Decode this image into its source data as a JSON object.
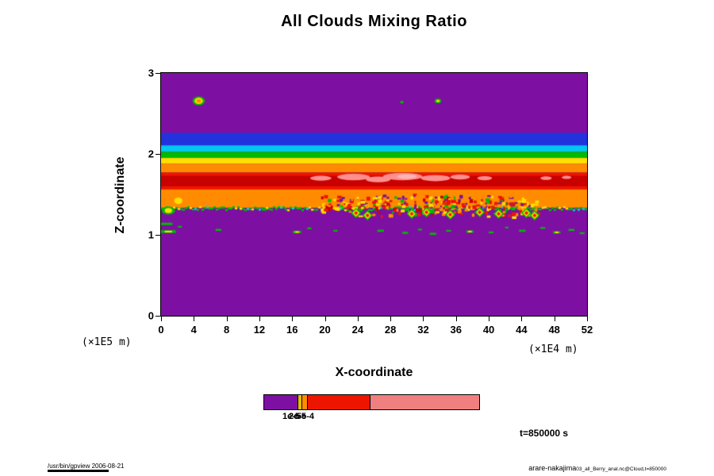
{
  "chart_data": {
    "type": "heatmap",
    "title": "All Clouds Mixing Ratio",
    "xlabel": "X-coordinate",
    "ylabel": "Z-coordinate",
    "x_units": "(×1E4 m)",
    "y_units": "(×1E5 m)",
    "xlim": [
      0,
      52
    ],
    "ylim": [
      0,
      3
    ],
    "x_ticks": [
      0,
      4,
      8,
      12,
      16,
      20,
      24,
      28,
      32,
      36,
      40,
      44,
      48,
      52
    ],
    "y_ticks": [
      0,
      1,
      2,
      3
    ],
    "time_label": "t=850000 s",
    "grid": false,
    "background_color": "#7d10a2",
    "bands": [
      {
        "name": "blue-layer",
        "color": "#2233dd",
        "z": [
          2.105,
          2.26
        ]
      },
      {
        "name": "cyan-layer",
        "color": "#00c8ee",
        "z": [
          2.025,
          2.105
        ]
      },
      {
        "name": "green-layer",
        "color": "#00bb00",
        "z": [
          1.95,
          2.025
        ]
      },
      {
        "name": "yellow-layer",
        "color": "#ffdf00",
        "z": [
          1.88,
          1.95
        ]
      },
      {
        "name": "orange-upper",
        "color": "#ff8c00",
        "z": [
          1.77,
          1.88
        ]
      },
      {
        "name": "red-layer",
        "color": "#ee1500",
        "z": [
          1.44,
          1.77
        ]
      },
      {
        "name": "darkred-core",
        "color": "#c80000",
        "z": [
          1.6,
          1.73
        ]
      },
      {
        "name": "orange-lower",
        "color": "#ff8c00",
        "z": [
          1.335,
          1.56
        ]
      }
    ],
    "pink_patches": [
      {
        "x": 19.5,
        "z": 1.7,
        "rx": 1.3,
        "rz": 0.03,
        "color": "#ff8f8f"
      },
      {
        "x": 23.5,
        "z": 1.715,
        "rx": 2.0,
        "rz": 0.04,
        "color": "#ff8f8f"
      },
      {
        "x": 26.5,
        "z": 1.685,
        "rx": 1.5,
        "rz": 0.035,
        "color": "#ff8f8f"
      },
      {
        "x": 29.5,
        "z": 1.72,
        "rx": 2.4,
        "rz": 0.045,
        "color": "#ff8f8f"
      },
      {
        "x": 30.0,
        "z": 1.72,
        "rx": 1.2,
        "rz": 0.028,
        "color": "#ffb4b4"
      },
      {
        "x": 33.5,
        "z": 1.7,
        "rx": 1.8,
        "rz": 0.038,
        "color": "#ff8f8f"
      },
      {
        "x": 36.5,
        "z": 1.715,
        "rx": 1.2,
        "rz": 0.03,
        "color": "#ff8f8f"
      },
      {
        "x": 39.5,
        "z": 1.7,
        "rx": 0.9,
        "rz": 0.025,
        "color": "#ff8f8f"
      },
      {
        "x": 47.0,
        "z": 1.7,
        "rx": 0.7,
        "rz": 0.022,
        "color": "#ff8f8f"
      },
      {
        "x": 49.5,
        "z": 1.71,
        "rx": 0.6,
        "rz": 0.02,
        "color": "#ff8f8f"
      }
    ],
    "edge_line": {
      "z": 1.335,
      "colors": [
        "#00bb00",
        "#00d8c8"
      ],
      "accent": "#ffdf00",
      "seed": 11
    },
    "holes": {
      "x_range": [
        21,
        45
      ],
      "z_range": [
        1.36,
        1.5
      ],
      "count": 55,
      "seed": 5,
      "color": "#7d10a2"
    },
    "turbulence": {
      "x_range": [
        19.5,
        46
      ],
      "z_range": [
        1.22,
        1.52
      ],
      "count": 280,
      "seed": 7,
      "colors": [
        "#ff8c00",
        "#ee1500",
        "#ffdf00",
        "#00bb00",
        "#ff8c00",
        "#ee1500",
        "#c80000",
        "#ffdf00"
      ]
    },
    "diamonds": [
      {
        "x": 23.8,
        "z": 1.27
      },
      {
        "x": 25.2,
        "z": 1.24
      },
      {
        "x": 30.6,
        "z": 1.26
      },
      {
        "x": 32.4,
        "z": 1.28
      },
      {
        "x": 35.3,
        "z": 1.25
      },
      {
        "x": 38.9,
        "z": 1.28
      },
      {
        "x": 41.2,
        "z": 1.26
      },
      {
        "x": 44.6,
        "z": 1.27
      },
      {
        "x": 45.6,
        "z": 1.24
      }
    ],
    "blobs": [
      {
        "x": 4.6,
        "z": 2.655,
        "rings": [
          {
            "color": "#00bb00",
            "rx": 0.75,
            "rz": 0.055
          },
          {
            "color": "#ffdf00",
            "rx": 0.5,
            "rz": 0.038
          },
          {
            "color": "#ff8c00",
            "rx": 0.28,
            "rz": 0.022
          }
        ]
      },
      {
        "x": 29.4,
        "z": 2.64,
        "rings": [
          {
            "color": "#00bb00",
            "rx": 0.22,
            "rz": 0.018
          }
        ]
      },
      {
        "x": 33.8,
        "z": 2.655,
        "rings": [
          {
            "color": "#00bb00",
            "rx": 0.4,
            "rz": 0.03
          },
          {
            "color": "#ffdf00",
            "rx": 0.2,
            "rz": 0.015
          }
        ]
      },
      {
        "x": 0.9,
        "z": 1.3,
        "rings": [
          {
            "color": "#00bb00",
            "rx": 0.8,
            "rz": 0.05
          },
          {
            "color": "#ffdf00",
            "rx": 0.45,
            "rz": 0.03
          }
        ]
      },
      {
        "x": 2.1,
        "z": 1.42,
        "rings": [
          {
            "color": "#ffdf00",
            "rx": 0.5,
            "rz": 0.04
          }
        ]
      }
    ],
    "specks": [
      {
        "x": 0.7,
        "z": 1.135,
        "w": 1.4,
        "h": 0.03
      },
      {
        "x": 0.9,
        "z": 1.04,
        "w": 1.8,
        "h": 0.035,
        "core": true
      },
      {
        "x": 2.3,
        "z": 1.1,
        "w": 0.5,
        "h": 0.022
      },
      {
        "x": 7.0,
        "z": 1.06,
        "w": 0.7,
        "h": 0.025
      },
      {
        "x": 12.6,
        "z": 1.31,
        "w": 0.6,
        "h": 0.022
      },
      {
        "x": 16.6,
        "z": 1.035,
        "w": 1.0,
        "h": 0.03,
        "core": true
      },
      {
        "x": 18.1,
        "z": 1.08,
        "w": 0.5,
        "h": 0.022
      },
      {
        "x": 21.3,
        "z": 1.05,
        "w": 0.5,
        "h": 0.022
      },
      {
        "x": 24.4,
        "z": 1.3,
        "w": 0.5,
        "h": 0.022
      },
      {
        "x": 26.8,
        "z": 1.05,
        "w": 0.8,
        "h": 0.026
      },
      {
        "x": 29.8,
        "z": 1.025,
        "w": 0.7,
        "h": 0.025
      },
      {
        "x": 31.6,
        "z": 1.065,
        "w": 0.5,
        "h": 0.022
      },
      {
        "x": 33.2,
        "z": 1.012,
        "w": 0.8,
        "h": 0.026
      },
      {
        "x": 35.1,
        "z": 1.05,
        "w": 0.6,
        "h": 0.022
      },
      {
        "x": 37.7,
        "z": 1.04,
        "w": 0.9,
        "h": 0.028,
        "core": true
      },
      {
        "x": 40.3,
        "z": 1.03,
        "w": 0.6,
        "h": 0.022
      },
      {
        "x": 42.2,
        "z": 1.09,
        "w": 0.4,
        "h": 0.02
      },
      {
        "x": 44.1,
        "z": 1.05,
        "w": 0.8,
        "h": 0.026
      },
      {
        "x": 46.6,
        "z": 1.085,
        "w": 0.6,
        "h": 0.022
      },
      {
        "x": 48.3,
        "z": 1.03,
        "w": 0.9,
        "h": 0.028,
        "core": true
      },
      {
        "x": 50.1,
        "z": 1.06,
        "w": 0.7,
        "h": 0.025
      },
      {
        "x": 51.4,
        "z": 1.02,
        "w": 0.6,
        "h": 0.022
      }
    ],
    "colorbar": {
      "segments": [
        {
          "color": "#7d10a2",
          "frac": 0.155
        },
        {
          "color": "#e0c000",
          "frac": 0.02
        },
        {
          "color": "#ff8c00",
          "frac": 0.025
        },
        {
          "color": "#ee1500",
          "frac": 0.29
        },
        {
          "color": "#f08080",
          "frac": 0.51
        }
      ],
      "labels": [
        {
          "text": "1e-5",
          "x": 24
        },
        {
          "text": "2e-5",
          "x": 32
        },
        {
          "text": "5e-4",
          "x": 42
        }
      ]
    }
  },
  "footer": {
    "left": "/usr/bin/gpview 2006-08-21",
    "right_main": "arare-nakajima",
    "right_sub": "03_all_Berry_anal.nc@Cloud,t=850000"
  }
}
